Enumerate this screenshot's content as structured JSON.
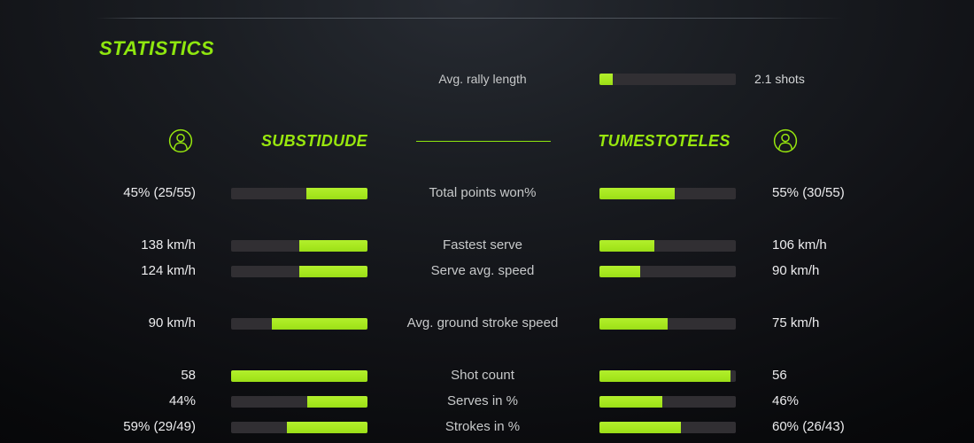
{
  "title": "STATISTICS",
  "colors": {
    "accent_green": "#97e70e",
    "bar_fill_green": "#a6e71e",
    "bar_track": "#312f33",
    "value_text": "#ececee",
    "label_text": "#c7c9ca",
    "background_dark": "#0a0b0d"
  },
  "rally": {
    "label": "Avg. rally length",
    "value": "2.1 shots",
    "fill_pct": 10
  },
  "players": {
    "left": {
      "name": "SUBSTIDUDE",
      "icon": "person-circle-icon"
    },
    "right": {
      "name": "TUMESTOTELES",
      "icon": "person-circle-icon"
    }
  },
  "stats": {
    "rows": [
      {
        "label": "Total points won%",
        "left_value": "45% (25/55)",
        "right_value": "55% (30/55)",
        "left_fill": 45,
        "right_fill": 55
      },
      {
        "label": "Fastest serve",
        "left_value": "138 km/h",
        "right_value": "106 km/h",
        "left_fill": 50,
        "right_fill": 40
      },
      {
        "label": "Serve avg. speed",
        "left_value": "124 km/h",
        "right_value": "90 km/h",
        "left_fill": 50,
        "right_fill": 30
      },
      {
        "label": "Avg. ground stroke speed",
        "left_value": "90 km/h",
        "right_value": "75 km/h",
        "left_fill": 70,
        "right_fill": 50
      },
      {
        "label": "Shot count",
        "left_value": "58",
        "right_value": "56",
        "left_fill": 100,
        "right_fill": 96
      },
      {
        "label": "Serves in %",
        "left_value": "44%",
        "right_value": "46%",
        "left_fill": 44,
        "right_fill": 46
      },
      {
        "label": "Strokes in %",
        "left_value": "59% (29/49)",
        "right_value": "60% (26/43)",
        "left_fill": 59,
        "right_fill": 60
      }
    ]
  }
}
